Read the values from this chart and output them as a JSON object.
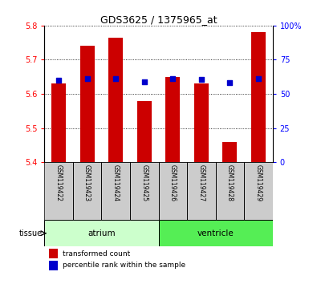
{
  "title": "GDS3625 / 1375965_at",
  "samples": [
    "GSM119422",
    "GSM119423",
    "GSM119424",
    "GSM119425",
    "GSM119426",
    "GSM119427",
    "GSM119428",
    "GSM119429"
  ],
  "bar_bottoms": [
    5.4,
    5.4,
    5.4,
    5.4,
    5.4,
    5.4,
    5.4,
    5.4
  ],
  "bar_tops": [
    5.63,
    5.74,
    5.765,
    5.58,
    5.65,
    5.63,
    5.46,
    5.78
  ],
  "blue_dots": [
    5.64,
    5.645,
    5.645,
    5.635,
    5.645,
    5.643,
    5.633,
    5.645
  ],
  "ylim_left": [
    5.4,
    5.8
  ],
  "ylim_right": [
    0,
    100
  ],
  "yticks_left": [
    5.4,
    5.5,
    5.6,
    5.7,
    5.8
  ],
  "yticks_right": [
    0,
    25,
    50,
    75,
    100
  ],
  "ytick_right_labels": [
    "0",
    "25",
    "50",
    "75",
    "100%"
  ],
  "bar_color": "#cc0000",
  "dot_color": "#0000cc",
  "atrium_color": "#ccffcc",
  "ventricle_color": "#55ee55",
  "tissue_label": "tissue",
  "atrium_label": "atrium",
  "ventricle_label": "ventricle",
  "legend_red": "transformed count",
  "legend_blue": "percentile rank within the sample",
  "bar_width": 0.5,
  "sample_box_color": "#cccccc",
  "plot_bg": "#ffffff"
}
